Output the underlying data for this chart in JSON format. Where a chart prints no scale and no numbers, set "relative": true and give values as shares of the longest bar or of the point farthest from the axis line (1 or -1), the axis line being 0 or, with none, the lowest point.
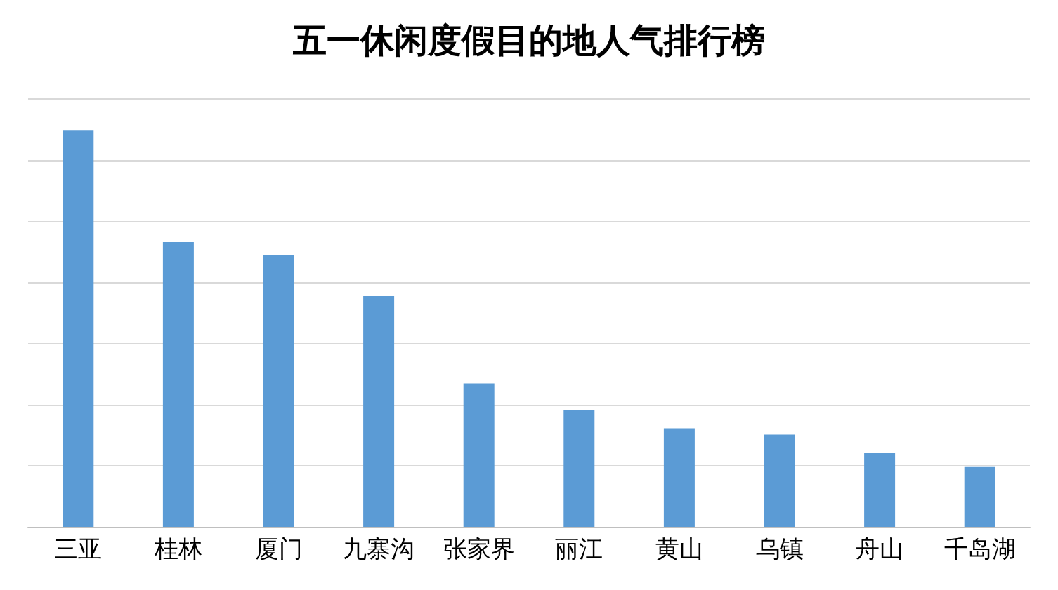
{
  "chart_data": {
    "type": "bar",
    "title": "五一休闲度假目的地人气排行榜",
    "relative": true,
    "grid": "y",
    "color": "#5b9bd5",
    "categories": [
      "三亚",
      "桂林",
      "厦门",
      "九寨沟",
      "张家界",
      "丽江",
      "黄山",
      "乌镇",
      "舟山",
      "千岛湖"
    ],
    "values": [
      1,
      0.717,
      0.685,
      0.581,
      0.362,
      0.294,
      0.247,
      0.233,
      0.186,
      0.151
    ]
  }
}
